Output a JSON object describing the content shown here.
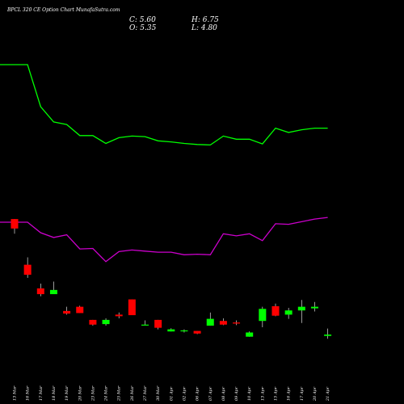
{
  "header": {
    "title": "BPCL 320 CE Option Chart MunafaSutra.com",
    "close_label": "C: 5.60",
    "high_label": "H: 6.75",
    "open_label": "O: 5.35",
    "low_label": "L: 4.80"
  },
  "colors": {
    "background": "#000000",
    "up_candle": "#00ff00",
    "down_candle": "#ff0000",
    "wick": "#ffffff",
    "line_green": "#00ff00",
    "line_magenta": "#cc00cc"
  },
  "chart_data": {
    "type": "candlestick",
    "x": [
      "13 Mar",
      "16 Mar",
      "17 Mar",
      "18 Mar",
      "19 Mar",
      "20 Mar",
      "23 Mar",
      "24 Mar",
      "25 Mar",
      "26 Mar",
      "27 Mar",
      "30 Mar",
      "01 Apr",
      "02 Apr",
      "06 Apr",
      "07 Apr",
      "08 Apr",
      "09 Apr",
      "10 Apr",
      "13 Apr",
      "15 Apr",
      "16 Apr",
      "17 Apr",
      "20 Apr",
      "21 Apr"
    ],
    "candles": [
      {
        "o": 27.6,
        "h": 27.6,
        "l": 24.8,
        "c": 25.8
      },
      {
        "o": 18.9,
        "h": 20.3,
        "l": 16.4,
        "c": 17.0
      },
      {
        "o": 14.4,
        "h": 15.3,
        "l": 12.9,
        "c": 13.3
      },
      {
        "o": 13.3,
        "h": 15.7,
        "l": 13.3,
        "c": 14.1
      },
      {
        "o": 10.1,
        "h": 10.9,
        "l": 9.4,
        "c": 9.6
      },
      {
        "o": 10.9,
        "h": 11.1,
        "l": 9.7,
        "c": 9.7
      },
      {
        "o": 8.4,
        "h": 8.4,
        "l": 7.3,
        "c": 7.5
      },
      {
        "o": 7.6,
        "h": 8.7,
        "l": 7.3,
        "c": 8.4
      },
      {
        "o": 9.4,
        "h": 9.8,
        "l": 8.7,
        "c": 9.1
      },
      {
        "o": 12.3,
        "h": 12.3,
        "l": 9.3,
        "c": 9.3
      },
      {
        "o": 7.4,
        "h": 8.3,
        "l": 7.4,
        "c": 7.5
      },
      {
        "o": 8.4,
        "h": 8.4,
        "l": 6.6,
        "c": 6.9
      },
      {
        "o": 6.2,
        "h": 6.8,
        "l": 6.2,
        "c": 6.6
      },
      {
        "o": 6.3,
        "h": 6.6,
        "l": 6.0,
        "c": 6.4
      },
      {
        "o": 6.3,
        "h": 6.3,
        "l": 5.7,
        "c": 5.8
      },
      {
        "o": 7.3,
        "h": 9.8,
        "l": 7.3,
        "c": 8.6
      },
      {
        "o": 8.2,
        "h": 8.7,
        "l": 7.4,
        "c": 7.5
      },
      {
        "o": 7.9,
        "h": 8.3,
        "l": 7.4,
        "c": 7.7
      },
      {
        "o": 5.2,
        "h": 6.2,
        "l": 5.2,
        "c": 6.0
      },
      {
        "o": 8.2,
        "h": 10.9,
        "l": 7.0,
        "c": 10.5
      },
      {
        "o": 11.0,
        "h": 11.5,
        "l": 9.1,
        "c": 9.2
      },
      {
        "o": 9.4,
        "h": 10.7,
        "l": 8.6,
        "c": 10.2
      },
      {
        "o": 10.2,
        "h": 12.2,
        "l": 7.8,
        "c": 10.9
      },
      {
        "o": 10.6,
        "h": 11.8,
        "l": 10.0,
        "c": 10.9
      },
      {
        "o": 5.35,
        "h": 6.75,
        "l": 4.8,
        "c": 5.6
      }
    ],
    "series": [
      {
        "values": [
          81.5,
          81.5,
          73.5,
          70.6,
          70.1,
          68.0,
          68.0,
          66.5,
          67.6,
          67.9,
          67.8,
          67.0,
          66.8,
          66.5,
          66.3,
          66.2,
          67.9,
          67.3,
          67.3,
          66.4,
          69.4,
          68.6,
          69.1,
          69.4,
          69.4
        ]
      },
      {
        "values": [
          51.5,
          51.5,
          49.5,
          48.6,
          49.1,
          46.4,
          46.5,
          44.0,
          45.9,
          46.2,
          46.0,
          45.8,
          45.8,
          45.3,
          45.4,
          45.3,
          49.3,
          48.9,
          49.3,
          48.0,
          51.2,
          51.1,
          51.6,
          52.1,
          52.4
        ]
      }
    ]
  }
}
